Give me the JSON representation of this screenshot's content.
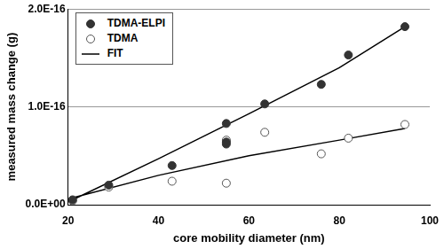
{
  "chart_data": {
    "type": "scatter",
    "x_label": "core mobility diameter (nm)",
    "y_label": "measured mass change (g)",
    "xlim": [
      20,
      100
    ],
    "xticks": [
      20,
      40,
      60,
      80,
      100
    ],
    "ylim": [
      0,
      2e-16
    ],
    "yticks": [
      {
        "value": 0,
        "label": "0.0E+00"
      },
      {
        "value": 1e-16,
        "label": "1.0E-16"
      },
      {
        "value": 2e-16,
        "label": "2.0E-16"
      }
    ],
    "grid": true,
    "legend": "top-left",
    "series": [
      {
        "name": "TDMA-ELPI",
        "type": "scatter",
        "marker": "filled",
        "color": "#333333",
        "x": [
          21,
          29,
          43,
          55,
          55,
          55,
          63.5,
          76,
          82,
          94.5
        ],
        "values": [
          5e-18,
          2e-17,
          4e-17,
          8.3e-17,
          6.4e-17,
          6.2e-17,
          1.03e-16,
          1.23e-16,
          1.53e-16,
          1.82e-16
        ]
      },
      {
        "name": "TDMA",
        "type": "scatter",
        "marker": "open",
        "color": "#555555",
        "x": [
          21,
          29,
          43,
          55,
          55,
          63.5,
          76,
          82,
          94.5
        ],
        "values": [
          4e-18,
          1.8e-17,
          2.4e-17,
          2.2e-17,
          6.6e-17,
          7.4e-17,
          5.2e-17,
          6.8e-17,
          8.2e-17
        ]
      },
      {
        "name": "FIT",
        "type": "line",
        "line_style": "solid",
        "color": "#000000",
        "x": [
          21,
          40,
          60,
          80,
          94.5,
          null,
          21,
          40,
          60,
          80,
          94.5
        ],
        "values": [
          5e-18,
          4.7e-17,
          9.3e-17,
          1.4e-16,
          1.82e-16,
          null,
          7e-18,
          3e-17,
          5e-17,
          6.6e-17,
          7.8e-17
        ]
      }
    ]
  }
}
